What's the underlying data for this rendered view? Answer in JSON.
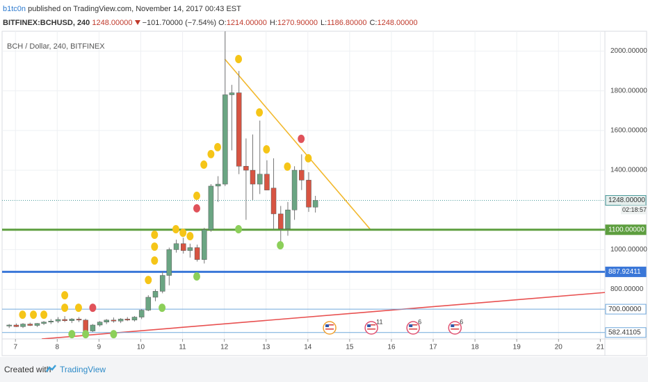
{
  "header": {
    "author": "b1tc0n",
    "published": "published on TradingView.com, November 14, 2017 00:43 EST",
    "symbol": "BITFINEX:BCHUSD, 240",
    "last": "1248.00000",
    "change": "−101.70000 (−7.54%)",
    "ohlc": [
      {
        "key": "O:",
        "value": "1214.00000"
      },
      {
        "key": "H:",
        "value": "1270.90000"
      },
      {
        "key": "L:",
        "value": "1186.80000"
      },
      {
        "key": "C:",
        "value": "1248.00000"
      }
    ]
  },
  "footer": {
    "created": "Created with",
    "brand": "TradingView"
  },
  "chart_data": {
    "type": "candlestick",
    "title": "BCH / Dollar, 240, BITFINEX",
    "up_color": "#6ba583",
    "down_color": "#d75442",
    "x": [
      6.85,
      7.02,
      7.18,
      7.35,
      7.52,
      7.68,
      7.85,
      8.02,
      8.18,
      8.35,
      8.52,
      8.68,
      8.85,
      9.02,
      9.18,
      9.35,
      9.52,
      9.68,
      9.85,
      10.02,
      10.18,
      10.35,
      10.52,
      10.68,
      10.85,
      11.02,
      11.18,
      11.35,
      11.52,
      11.68,
      11.85,
      12.02,
      12.18,
      12.35,
      12.52,
      12.68,
      12.85,
      13.02,
      13.18,
      13.35,
      13.52,
      13.68,
      13.85,
      14.02,
      14.18
    ],
    "open": [
      615,
      620,
      612,
      625,
      618,
      628,
      635,
      640,
      648,
      642,
      650,
      645,
      590,
      620,
      635,
      645,
      640,
      650,
      645,
      660,
      695,
      760,
      790,
      870,
      1000,
      1030,
      995,
      1010,
      950,
      1100,
      1320,
      1330,
      1780,
      1790,
      1420,
      1400,
      1330,
      1380,
      1310,
      1180,
      1105,
      1200,
      1400,
      1350,
      1214
    ],
    "high": [
      625,
      628,
      630,
      632,
      630,
      640,
      650,
      660,
      665,
      655,
      660,
      652,
      625,
      640,
      650,
      658,
      655,
      660,
      665,
      700,
      770,
      800,
      890,
      1010,
      1050,
      1060,
      1030,
      1025,
      1110,
      1330,
      1370,
      2100,
      1830,
      1900,
      1560,
      1580,
      1650,
      1450,
      1460,
      1220,
      1240,
      1420,
      1480,
      1390,
      1270.9
    ],
    "low": [
      605,
      610,
      605,
      615,
      610,
      620,
      625,
      630,
      635,
      630,
      635,
      580,
      585,
      612,
      625,
      632,
      630,
      640,
      638,
      650,
      690,
      740,
      780,
      820,
      985,
      980,
      960,
      940,
      930,
      1090,
      1240,
      1320,
      1500,
      1380,
      1150,
      1250,
      1280,
      1300,
      1100,
      1040,
      1070,
      1150,
      1300,
      1190,
      1186.8
    ],
    "close": [
      620,
      612,
      625,
      618,
      628,
      635,
      640,
      648,
      642,
      650,
      645,
      590,
      620,
      635,
      645,
      640,
      650,
      645,
      660,
      695,
      760,
      790,
      870,
      1000,
      1030,
      995,
      1010,
      950,
      1100,
      1320,
      1330,
      1780,
      1790,
      1420,
      1400,
      1330,
      1380,
      1300,
      1180,
      1105,
      1200,
      1400,
      1350,
      1214,
      1248
    ],
    "markers": [
      {
        "color": "#f5c518",
        "x": [
          7.17,
          7.43,
          7.68,
          8.18,
          8.18,
          8.51,
          10.18,
          10.33,
          10.33,
          10.33,
          10.84,
          11.01,
          11.18,
          11.34,
          11.51,
          11.68,
          11.84,
          12.34,
          12.84,
          13.01,
          13.51,
          14.01
        ],
        "y": [
          672,
          672,
          672,
          770,
          707,
          707,
          847,
          1075,
          1015,
          945,
          1103,
          1085,
          1068,
          1271,
          1428,
          1481,
          1516,
          1960,
          1691,
          1505,
          1418,
          1460
        ]
      },
      {
        "color": "#e0525a",
        "x": [
          8.85,
          11.34,
          13.84
        ],
        "y": [
          707,
          1208,
          1558
        ]
      },
      {
        "color": "#8ccf5a",
        "x": [
          8.35,
          8.68,
          9.35,
          10.51,
          11.34,
          12.34,
          13.34
        ],
        "y": [
          574,
          574,
          574,
          707,
          865,
          1103,
          1022
        ]
      }
    ],
    "trend_lines": [
      {
        "color": "#f2b82c",
        "x": [
          12.01,
          15.49
        ],
        "y": [
          1960,
          1103
        ]
      },
      {
        "color": "#e85050",
        "x": [
          7.63,
          21.11
        ],
        "y": [
          550,
          784
        ]
      }
    ],
    "hlines": [
      {
        "value": 1100,
        "label": "1100.00000",
        "color": "#5d9e3f",
        "width": 3
      },
      {
        "value": 887.92411,
        "label": "887.92411",
        "color": "#3a77d8",
        "width": 3
      },
      {
        "value": 700,
        "label": "700.00000",
        "color": "#6fa8dc",
        "width": 1
      },
      {
        "value": 582.41105,
        "label": "582.41105",
        "color": "#6fa8dc",
        "width": 1
      }
    ],
    "last_price": {
      "value": 1248,
      "label": "1248.00000",
      "countdown": "02:18:57",
      "color": "#4a9a9a"
    },
    "events": {
      "x": [
        14.52,
        15.52,
        16.52,
        17.52
      ],
      "labels": [
        null,
        "11",
        "6",
        "6"
      ]
    },
    "xlim": [
      6.68,
      21.11
    ],
    "xticks": [
      7,
      8,
      9,
      10,
      11,
      12,
      13,
      14,
      15,
      16,
      17,
      18,
      19,
      20,
      21
    ],
    "ylim": [
      550,
      2100
    ],
    "yticks": [
      {
        "value": 800,
        "label": "800.00000"
      },
      {
        "value": 1000,
        "label": "1000.00000"
      },
      {
        "value": 1400,
        "label": "1400.00000"
      },
      {
        "value": 1600,
        "label": "1600.00000"
      },
      {
        "value": 1800,
        "label": "1800.00000"
      },
      {
        "value": 2000,
        "label": "2000.00000"
      }
    ],
    "grid": true
  }
}
